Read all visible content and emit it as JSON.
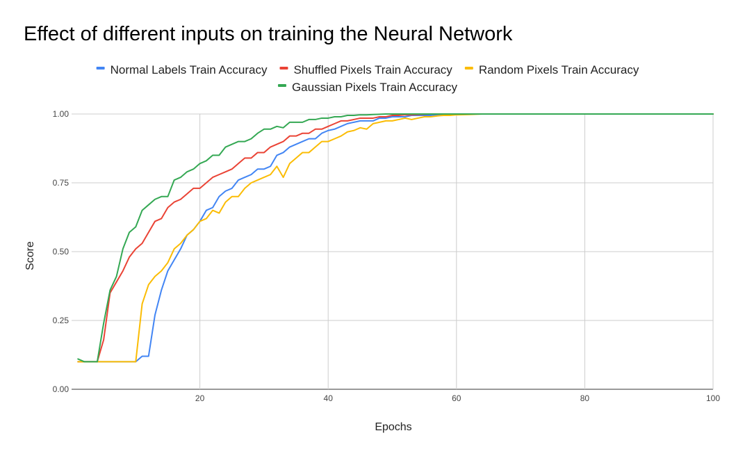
{
  "chart_data": {
    "type": "line",
    "title": "Effect of different inputs on training the Neural Network",
    "xlabel": "Epochs",
    "ylabel": "Score",
    "xlim": [
      0,
      100
    ],
    "ylim": [
      0,
      1
    ],
    "x_ticks": [
      20,
      40,
      60,
      80,
      100
    ],
    "y_ticks": [
      0,
      0.25,
      0.5,
      0.75,
      1
    ],
    "y_tick_labels": [
      "0.00",
      "0.25",
      "0.50",
      "0.75",
      "1.00"
    ],
    "grid": true,
    "legend_position": "top",
    "series": [
      {
        "name": "Normal Labels Train Accuracy",
        "color": "#4285F4",
        "points": [
          [
            1,
            0.1
          ],
          [
            2,
            0.1
          ],
          [
            3,
            0.1
          ],
          [
            4,
            0.1
          ],
          [
            5,
            0.1
          ],
          [
            6,
            0.1
          ],
          [
            7,
            0.1
          ],
          [
            8,
            0.1
          ],
          [
            9,
            0.1
          ],
          [
            10,
            0.1
          ],
          [
            11,
            0.12
          ],
          [
            12,
            0.12
          ],
          [
            13,
            0.27
          ],
          [
            14,
            0.36
          ],
          [
            15,
            0.43
          ],
          [
            16,
            0.47
          ],
          [
            17,
            0.51
          ],
          [
            18,
            0.56
          ],
          [
            19,
            0.58
          ],
          [
            20,
            0.61
          ],
          [
            21,
            0.65
          ],
          [
            22,
            0.66
          ],
          [
            23,
            0.7
          ],
          [
            24,
            0.72
          ],
          [
            25,
            0.73
          ],
          [
            26,
            0.76
          ],
          [
            27,
            0.77
          ],
          [
            28,
            0.78
          ],
          [
            29,
            0.8
          ],
          [
            30,
            0.8
          ],
          [
            31,
            0.81
          ],
          [
            32,
            0.85
          ],
          [
            33,
            0.86
          ],
          [
            34,
            0.88
          ],
          [
            35,
            0.89
          ],
          [
            36,
            0.9
          ],
          [
            37,
            0.91
          ],
          [
            38,
            0.91
          ],
          [
            39,
            0.93
          ],
          [
            40,
            0.94
          ],
          [
            41,
            0.945
          ],
          [
            42,
            0.955
          ],
          [
            43,
            0.965
          ],
          [
            44,
            0.97
          ],
          [
            45,
            0.975
          ],
          [
            46,
            0.975
          ],
          [
            47,
            0.975
          ],
          [
            48,
            0.985
          ],
          [
            49,
            0.985
          ],
          [
            50,
            0.99
          ],
          [
            51,
            0.99
          ],
          [
            52,
            0.99
          ],
          [
            53,
            0.995
          ],
          [
            54,
            0.995
          ],
          [
            55,
            0.995
          ],
          [
            56,
            0.995
          ],
          [
            57,
            0.997
          ],
          [
            58,
            0.998
          ],
          [
            59,
            0.999
          ],
          [
            60,
            1.0
          ],
          [
            65,
            1.0
          ],
          [
            70,
            1.0
          ],
          [
            75,
            1.0
          ],
          [
            80,
            1.0
          ],
          [
            85,
            1.0
          ],
          [
            90,
            1.0
          ],
          [
            95,
            1.0
          ],
          [
            100,
            1.0
          ]
        ]
      },
      {
        "name": "Shuffled Pixels Train Accuracy",
        "color": "#EA4335",
        "points": [
          [
            1,
            0.1
          ],
          [
            2,
            0.1
          ],
          [
            3,
            0.1
          ],
          [
            4,
            0.1
          ],
          [
            5,
            0.18
          ],
          [
            6,
            0.35
          ],
          [
            7,
            0.39
          ],
          [
            8,
            0.43
          ],
          [
            9,
            0.48
          ],
          [
            10,
            0.51
          ],
          [
            11,
            0.53
          ],
          [
            12,
            0.57
          ],
          [
            13,
            0.61
          ],
          [
            14,
            0.62
          ],
          [
            15,
            0.66
          ],
          [
            16,
            0.68
          ],
          [
            17,
            0.69
          ],
          [
            18,
            0.71
          ],
          [
            19,
            0.73
          ],
          [
            20,
            0.73
          ],
          [
            21,
            0.75
          ],
          [
            22,
            0.77
          ],
          [
            23,
            0.78
          ],
          [
            24,
            0.79
          ],
          [
            25,
            0.8
          ],
          [
            26,
            0.82
          ],
          [
            27,
            0.84
          ],
          [
            28,
            0.84
          ],
          [
            29,
            0.86
          ],
          [
            30,
            0.86
          ],
          [
            31,
            0.88
          ],
          [
            32,
            0.89
          ],
          [
            33,
            0.9
          ],
          [
            34,
            0.92
          ],
          [
            35,
            0.92
          ],
          [
            36,
            0.93
          ],
          [
            37,
            0.93
          ],
          [
            38,
            0.945
          ],
          [
            39,
            0.945
          ],
          [
            40,
            0.955
          ],
          [
            41,
            0.965
          ],
          [
            42,
            0.975
          ],
          [
            43,
            0.975
          ],
          [
            44,
            0.98
          ],
          [
            45,
            0.985
          ],
          [
            46,
            0.985
          ],
          [
            47,
            0.985
          ],
          [
            48,
            0.99
          ],
          [
            49,
            0.99
          ],
          [
            50,
            0.995
          ],
          [
            51,
            0.995
          ],
          [
            52,
            0.997
          ],
          [
            53,
            0.997
          ],
          [
            54,
            0.998
          ],
          [
            55,
            0.999
          ],
          [
            56,
            1.0
          ],
          [
            60,
            1.0
          ],
          [
            65,
            1.0
          ],
          [
            70,
            1.0
          ],
          [
            75,
            1.0
          ],
          [
            80,
            1.0
          ],
          [
            85,
            1.0
          ],
          [
            90,
            1.0
          ],
          [
            95,
            1.0
          ],
          [
            100,
            1.0
          ]
        ]
      },
      {
        "name": "Random Pixels Train Accuracy",
        "color": "#FBBC04",
        "points": [
          [
            1,
            0.1
          ],
          [
            2,
            0.1
          ],
          [
            3,
            0.1
          ],
          [
            4,
            0.1
          ],
          [
            5,
            0.1
          ],
          [
            6,
            0.1
          ],
          [
            7,
            0.1
          ],
          [
            8,
            0.1
          ],
          [
            9,
            0.1
          ],
          [
            10,
            0.1
          ],
          [
            11,
            0.31
          ],
          [
            12,
            0.38
          ],
          [
            13,
            0.41
          ],
          [
            14,
            0.43
          ],
          [
            15,
            0.46
          ],
          [
            16,
            0.51
          ],
          [
            17,
            0.53
          ],
          [
            18,
            0.56
          ],
          [
            19,
            0.58
          ],
          [
            20,
            0.61
          ],
          [
            21,
            0.62
          ],
          [
            22,
            0.65
          ],
          [
            23,
            0.64
          ],
          [
            24,
            0.68
          ],
          [
            25,
            0.7
          ],
          [
            26,
            0.7
          ],
          [
            27,
            0.73
          ],
          [
            28,
            0.75
          ],
          [
            29,
            0.76
          ],
          [
            30,
            0.77
          ],
          [
            31,
            0.78
          ],
          [
            32,
            0.81
          ],
          [
            33,
            0.77
          ],
          [
            34,
            0.82
          ],
          [
            35,
            0.84
          ],
          [
            36,
            0.86
          ],
          [
            37,
            0.86
          ],
          [
            38,
            0.88
          ],
          [
            39,
            0.9
          ],
          [
            40,
            0.9
          ],
          [
            41,
            0.91
          ],
          [
            42,
            0.92
          ],
          [
            43,
            0.935
          ],
          [
            44,
            0.94
          ],
          [
            45,
            0.95
          ],
          [
            46,
            0.945
          ],
          [
            47,
            0.965
          ],
          [
            48,
            0.97
          ],
          [
            49,
            0.975
          ],
          [
            50,
            0.975
          ],
          [
            51,
            0.98
          ],
          [
            52,
            0.985
          ],
          [
            53,
            0.98
          ],
          [
            54,
            0.985
          ],
          [
            55,
            0.99
          ],
          [
            56,
            0.99
          ],
          [
            57,
            0.993
          ],
          [
            58,
            0.995
          ],
          [
            59,
            0.995
          ],
          [
            60,
            0.997
          ],
          [
            62,
            0.998
          ],
          [
            64,
            1.0
          ],
          [
            70,
            1.0
          ],
          [
            75,
            1.0
          ],
          [
            80,
            1.0
          ],
          [
            85,
            1.0
          ],
          [
            90,
            1.0
          ],
          [
            95,
            1.0
          ],
          [
            100,
            1.0
          ]
        ]
      },
      {
        "name": "Gaussian Pixels Train Accuracy",
        "color": "#34A853",
        "points": [
          [
            1,
            0.11
          ],
          [
            2,
            0.1
          ],
          [
            3,
            0.1
          ],
          [
            4,
            0.1
          ],
          [
            5,
            0.24
          ],
          [
            6,
            0.36
          ],
          [
            7,
            0.41
          ],
          [
            8,
            0.51
          ],
          [
            9,
            0.57
          ],
          [
            10,
            0.59
          ],
          [
            11,
            0.65
          ],
          [
            12,
            0.67
          ],
          [
            13,
            0.69
          ],
          [
            14,
            0.7
          ],
          [
            15,
            0.7
          ],
          [
            16,
            0.76
          ],
          [
            17,
            0.77
          ],
          [
            18,
            0.79
          ],
          [
            19,
            0.8
          ],
          [
            20,
            0.82
          ],
          [
            21,
            0.83
          ],
          [
            22,
            0.85
          ],
          [
            23,
            0.85
          ],
          [
            24,
            0.88
          ],
          [
            25,
            0.89
          ],
          [
            26,
            0.9
          ],
          [
            27,
            0.9
          ],
          [
            28,
            0.91
          ],
          [
            29,
            0.93
          ],
          [
            30,
            0.945
          ],
          [
            31,
            0.945
          ],
          [
            32,
            0.955
          ],
          [
            33,
            0.95
          ],
          [
            34,
            0.97
          ],
          [
            35,
            0.97
          ],
          [
            36,
            0.97
          ],
          [
            37,
            0.98
          ],
          [
            38,
            0.98
          ],
          [
            39,
            0.985
          ],
          [
            40,
            0.985
          ],
          [
            41,
            0.99
          ],
          [
            42,
            0.99
          ],
          [
            43,
            0.995
          ],
          [
            44,
            0.995
          ],
          [
            45,
            0.997
          ],
          [
            46,
            0.997
          ],
          [
            47,
            0.998
          ],
          [
            48,
            0.999
          ],
          [
            49,
            1.0
          ],
          [
            55,
            1.0
          ],
          [
            60,
            1.0
          ],
          [
            65,
            1.0
          ],
          [
            70,
            1.0
          ],
          [
            75,
            1.0
          ],
          [
            80,
            1.0
          ],
          [
            85,
            1.0
          ],
          [
            90,
            1.0
          ],
          [
            95,
            1.0
          ],
          [
            100,
            1.0
          ]
        ]
      }
    ]
  }
}
